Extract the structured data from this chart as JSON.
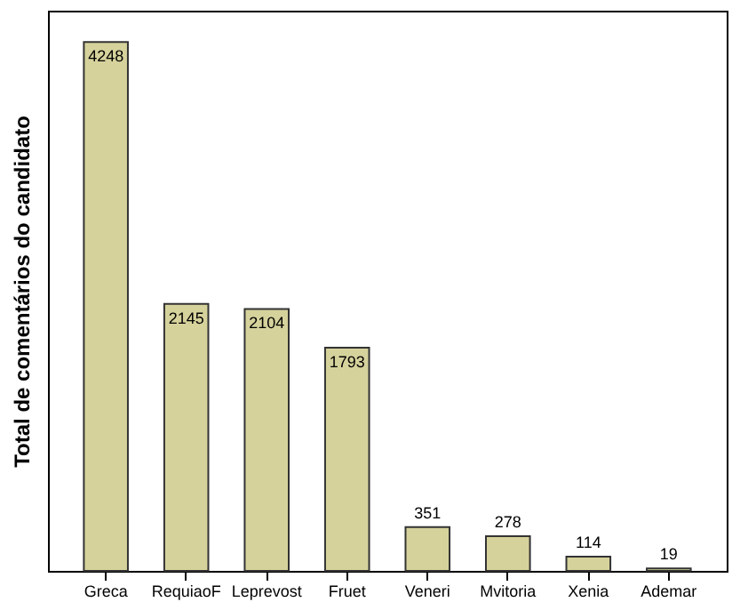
{
  "chart_data": {
    "type": "bar",
    "ylabel": "Total de comentários do candidato",
    "categories": [
      "Greca",
      "RequiaoF",
      "Leprevost",
      "Fruet",
      "Veneri",
      "Mvitoria",
      "Xenia",
      "Ademar"
    ],
    "values": [
      4248,
      2145,
      2104,
      1793,
      351,
      278,
      114,
      19
    ],
    "color": "#d6d29c",
    "data_labels": true,
    "tick_labels": "x",
    "grid": false
  }
}
